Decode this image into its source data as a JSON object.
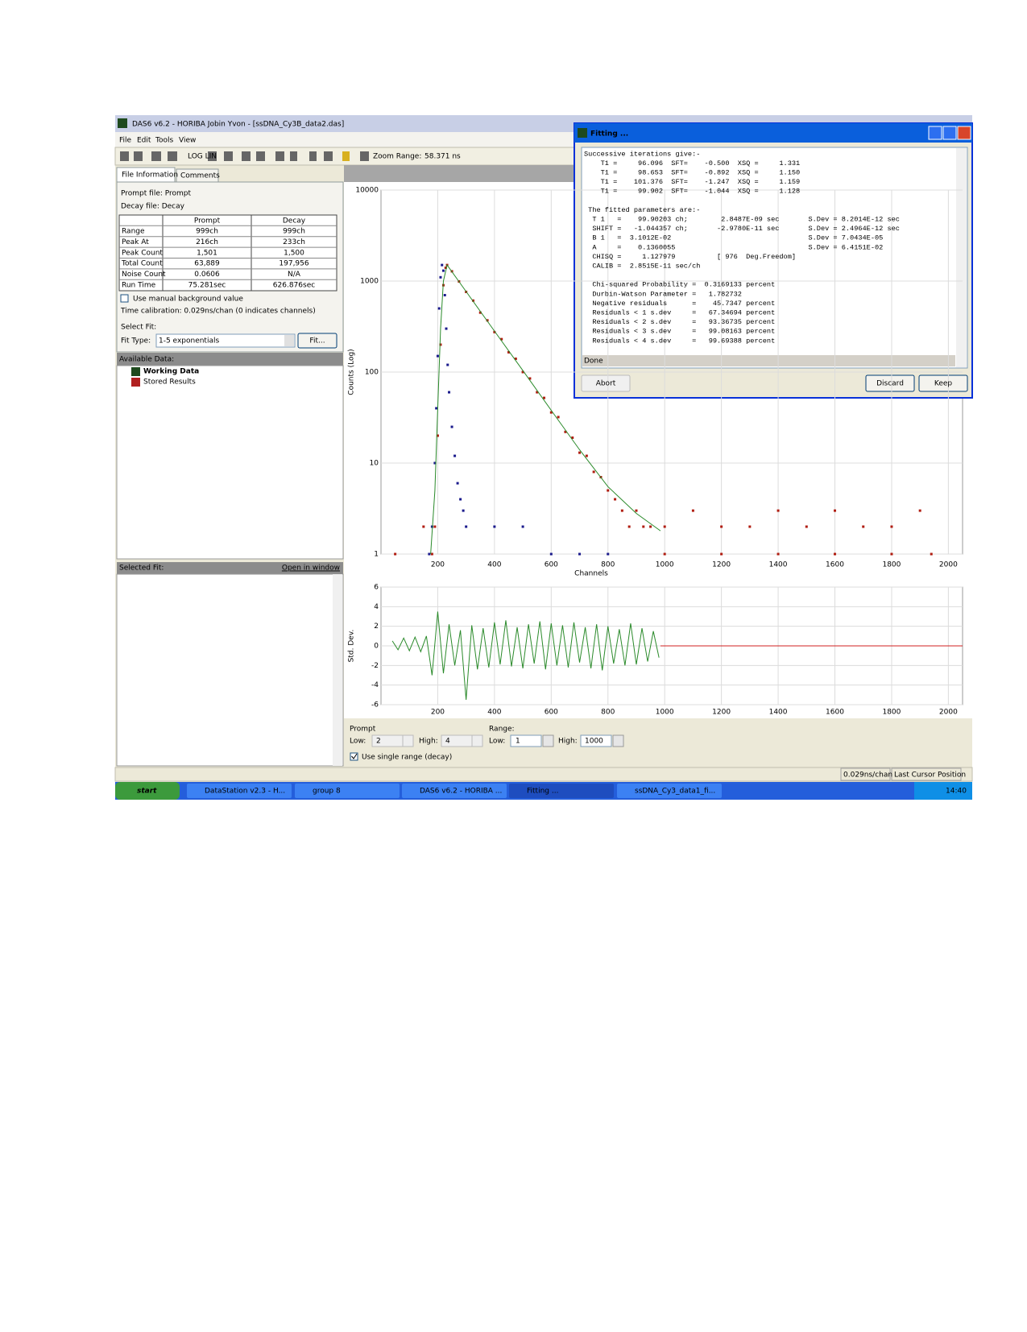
{
  "window": {
    "title": "DAS6 v6.2 - HORIBA Jobin Yvon - [ssDNA_Cy3B_data2.das]",
    "menu": [
      "File",
      "Edit",
      "Tools",
      "View"
    ],
    "toolbar": {
      "log_button": "LOG LIN",
      "zoom_label": "Zoom Range:",
      "zoom_value": "58.371 ns"
    }
  },
  "left_panel": {
    "tabs": [
      "File Information",
      "Comments"
    ],
    "prompt_file": "Prompt file: Prompt",
    "decay_file": "Decay file: Decay",
    "table": {
      "header": [
        "Prompt",
        "Decay"
      ],
      "rows": [
        [
          "Range",
          "999ch",
          "999ch"
        ],
        [
          "Peak At",
          "216ch",
          "233ch"
        ],
        [
          "Peak Count",
          "1,501",
          "1,500"
        ],
        [
          "Total Count",
          "63,889",
          "197,956"
        ],
        [
          "Noise Count",
          "0.0606",
          "N/A"
        ],
        [
          "Run Time",
          "75.281sec",
          "626.876sec"
        ]
      ]
    },
    "manual_bg": "Use manual background value",
    "time_calibration": "Time calibration:  0.029ns/chan (0 indicates channels)",
    "select_fit": "Select Fit:",
    "fit_type_label": "Fit Type:",
    "fit_type": "1-5 exponentials",
    "fit_button": "Fit..."
  },
  "available_data": {
    "title": "Available Data:",
    "items": [
      "Working Data",
      "Stored Results"
    ]
  },
  "selected_fit": {
    "title": "Selected Fit:",
    "link": "Open in window"
  },
  "decay_plot": {
    "type": "scatter",
    "y_label": "Counts (Log)",
    "x_label": "Channels",
    "log_scale": true,
    "grid": true,
    "xlim": [
      0,
      2050
    ],
    "ylim": [
      1,
      10000
    ],
    "xticks": [
      200,
      400,
      600,
      800,
      1000,
      1200,
      1400,
      1600,
      1800,
      2000
    ],
    "yticks": [
      1,
      10,
      100,
      1000,
      10000
    ],
    "series": [
      {
        "name": "Prompt",
        "color": "#1a1a8c",
        "marker": "point",
        "x": [
          170,
          180,
          190,
          195,
          200,
          205,
          210,
          215,
          220,
          225,
          230,
          235,
          240,
          250,
          260,
          270,
          280,
          290,
          300,
          400,
          500,
          600,
          700,
          800
        ],
        "values": [
          1,
          2,
          10,
          40,
          150,
          500,
          1100,
          1500,
          1300,
          700,
          300,
          120,
          60,
          25,
          12,
          6,
          4,
          3,
          2,
          2,
          2,
          1,
          1,
          1
        ]
      },
      {
        "name": "Decay",
        "color": "#b01c10",
        "marker": "point",
        "x": [
          50,
          150,
          180,
          190,
          200,
          210,
          220,
          228,
          233,
          250,
          275,
          300,
          325,
          350,
          375,
          400,
          425,
          450,
          475,
          500,
          525,
          550,
          575,
          600,
          625,
          650,
          675,
          700,
          725,
          750,
          775,
          800,
          825,
          850,
          875,
          900,
          925,
          950,
          1000,
          1100,
          1200,
          1300,
          1400,
          1500,
          1600,
          1700,
          1800,
          1900,
          1000,
          1200,
          1400,
          1600,
          1800,
          1940
        ],
        "values": [
          1,
          2,
          1,
          2,
          20,
          200,
          900,
          1400,
          1500,
          1280,
          990,
          760,
          610,
          450,
          370,
          275,
          230,
          165,
          140,
          100,
          85,
          60,
          52,
          36,
          32,
          22,
          19,
          13,
          12,
          8,
          7,
          5,
          4,
          3,
          2,
          3,
          2,
          2,
          2,
          3,
          2,
          2,
          3,
          2,
          3,
          2,
          2,
          3,
          1,
          1,
          1,
          1,
          1,
          1
        ]
      },
      {
        "name": "Fit",
        "color": "#2a8a2a",
        "marker": "line",
        "x": [
          175,
          190,
          200,
          210,
          220,
          233,
          300,
          400,
          500,
          600,
          700,
          800,
          900,
          985
        ],
        "values": [
          1,
          5,
          40,
          300,
          1000,
          1500,
          767,
          282,
          104,
          38,
          14,
          5.5,
          2.8,
          1.8
        ]
      }
    ]
  },
  "residual_plot": {
    "type": "line",
    "y_label": "Std. Dev.",
    "grid": true,
    "xlim": [
      0,
      2050
    ],
    "ylim": [
      -6,
      6
    ],
    "xticks": [
      200,
      400,
      600,
      800,
      1000,
      1200,
      1400,
      1600,
      1800,
      2000
    ],
    "yticks": [
      -6,
      -4,
      -2,
      0,
      2,
      4,
      6
    ],
    "series": [
      {
        "name": "Residuals",
        "color": "#2a8a2a",
        "x": [
          40,
          60,
          80,
          100,
          120,
          140,
          160,
          180,
          200,
          220,
          240,
          260,
          280,
          300,
          320,
          340,
          360,
          380,
          400,
          420,
          440,
          460,
          480,
          500,
          520,
          540,
          560,
          580,
          600,
          620,
          640,
          660,
          680,
          700,
          720,
          740,
          760,
          780,
          800,
          820,
          840,
          860,
          880,
          900,
          920,
          940,
          960,
          980
        ],
        "values": [
          0.5,
          -0.4,
          0.8,
          -0.5,
          0.9,
          -0.6,
          1,
          -3,
          3.5,
          -2.8,
          2.2,
          -2,
          1.6,
          -5.5,
          2.1,
          -2.4,
          1.8,
          -2.2,
          2.4,
          -1.9,
          2.6,
          -2.1,
          1.9,
          -2.3,
          2.2,
          -1.8,
          2.5,
          -2.4,
          2.3,
          -2,
          2.1,
          -2.2,
          2.4,
          -1.7,
          1.9,
          -2.3,
          2.2,
          -2.5,
          2,
          -1.8,
          1.7,
          -2,
          2.3,
          -1.9,
          1.8,
          -1.6,
          1.5,
          -1.2
        ]
      },
      {
        "name": "Zero",
        "color": "#d02020",
        "x": [
          985,
          2050
        ],
        "values": [
          0,
          0
        ]
      }
    ]
  },
  "range_controls": {
    "prompt_label": "Prompt",
    "range_label": "Range:",
    "low_label": "Low:",
    "high_label": "High:",
    "prompt_low": "2",
    "prompt_high": "4",
    "range_low": "1",
    "range_high": "1000",
    "single_range": "Use single range (decay)"
  },
  "status_bar": [
    "0.029ns/chan",
    "Last Cursor Position"
  ],
  "taskbar": {
    "start": "start",
    "tasks": [
      "DataStation v2.3 - H...",
      "group 8",
      "DAS6 v6.2 - HORIBA ...",
      "Fitting ...",
      "ssDNA_Cy3_data1_fi..."
    ],
    "clock": "14:40"
  },
  "fitting_dialog": {
    "title": "Fitting ...",
    "iterations": [
      "Successive iterations give:-",
      "    T1 =     96.096  SFT=    -0.500  XSQ =     1.331",
      "    T1 =     98.653  SFT=    -0.892  XSQ =     1.150",
      "    T1 =    101.376  SFT=    -1.247  XSQ =     1.159",
      "    T1 =     99.902  SFT=    -1.044  XSQ =     1.128"
    ],
    "parameters": [
      " The fitted parameters are:-",
      "  T 1   =    99.90203 ch;        2.8487E-09 sec       S.Dev = 8.2014E-12 sec",
      "  SHIFT =   -1.044357 ch;       -2.9780E-11 sec       S.Dev = 2.4964E-12 sec",
      "  B 1   =  3.1012E-02                                 S.Dev = 7.0434E-05",
      "  A     =    0.1360055                                S.Dev = 6.4151E-02",
      "  CHISQ =     1.127979          [ 976  Deg.Freedom]",
      "  CALIB =  2.8515E-11 sec/ch"
    ],
    "statistics": [
      "  Chi-squared Probability =  0.3169133 percent",
      "  Durbin-Watson Parameter =   1.782732",
      "  Negative residuals      =    45.7347 percent",
      "  Residuals < 1 s.dev     =   67.34694 percent",
      "  Residuals < 2 s.dev     =   93.36735 percent",
      "  Residuals < 3 s.dev     =   99.08163 percent",
      "  Residuals < 4 s.dev     =   99.69388 percent"
    ],
    "status": "Done",
    "buttons": [
      "Abort",
      "Discard",
      "Keep"
    ]
  }
}
